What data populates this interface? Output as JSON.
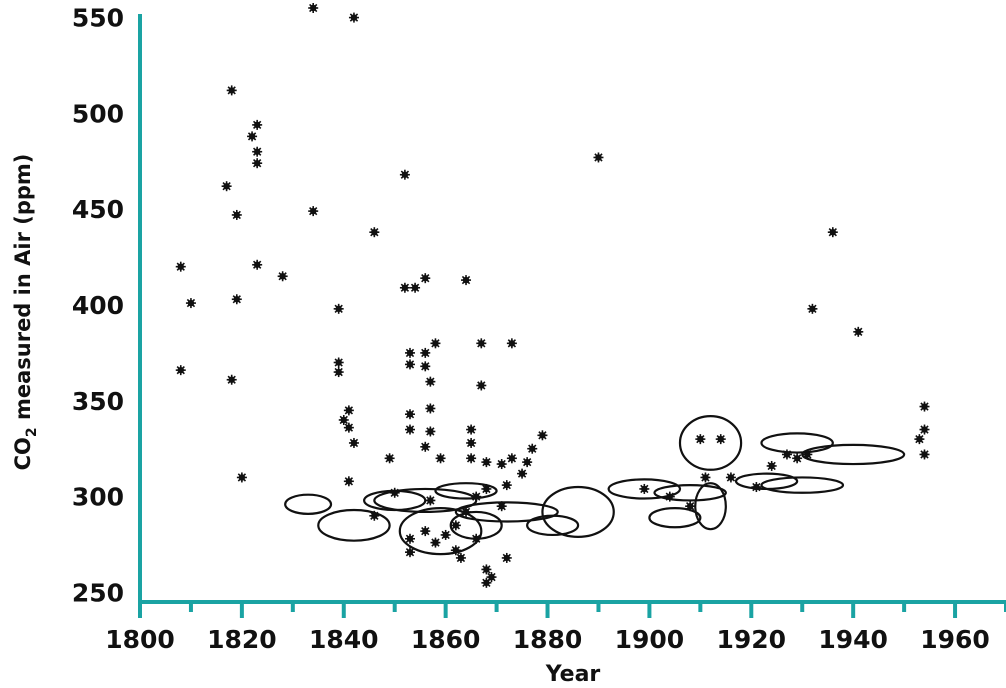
{
  "chart_data": {
    "type": "scatter",
    "xlabel": "Year",
    "ylabel_parts": [
      "CO",
      "2",
      " measured in Air  (ppm)"
    ],
    "xlim": [
      1800,
      1970
    ],
    "ylim": [
      245,
      555
    ],
    "x_ticks": [
      1800,
      1820,
      1840,
      1860,
      1880,
      1900,
      1920,
      1940,
      1960
    ],
    "x_tick_labels": [
      "1800",
      "1820",
      "1840",
      "1860",
      "1880",
      "1900",
      "1920",
      "1940",
      "1960"
    ],
    "y_ticks": [
      250,
      300,
      350,
      400,
      450,
      500,
      550
    ],
    "y_tick_labels": [
      "250",
      "300",
      "350",
      "400",
      "450",
      "500",
      "550"
    ],
    "grid": false,
    "axis_color": "#1aa3a3",
    "point_color": "#111111",
    "points": [
      {
        "x": 1808,
        "y": 420
      },
      {
        "x": 1810,
        "y": 401
      },
      {
        "x": 1808,
        "y": 366
      },
      {
        "x": 1817,
        "y": 462
      },
      {
        "x": 1818,
        "y": 512
      },
      {
        "x": 1819,
        "y": 447
      },
      {
        "x": 1819,
        "y": 403
      },
      {
        "x": 1818,
        "y": 361
      },
      {
        "x": 1820,
        "y": 310
      },
      {
        "x": 1822,
        "y": 488
      },
      {
        "x": 1823,
        "y": 494
      },
      {
        "x": 1823,
        "y": 480
      },
      {
        "x": 1823,
        "y": 474
      },
      {
        "x": 1823,
        "y": 421
      },
      {
        "x": 1828,
        "y": 415
      },
      {
        "x": 1834,
        "y": 555
      },
      {
        "x": 1834,
        "y": 449
      },
      {
        "x": 1842,
        "y": 550
      },
      {
        "x": 1839,
        "y": 398
      },
      {
        "x": 1839,
        "y": 370
      },
      {
        "x": 1839,
        "y": 365
      },
      {
        "x": 1840,
        "y": 340
      },
      {
        "x": 1841,
        "y": 345
      },
      {
        "x": 1841,
        "y": 336
      },
      {
        "x": 1842,
        "y": 328
      },
      {
        "x": 1841,
        "y": 308
      },
      {
        "x": 1846,
        "y": 438
      },
      {
        "x": 1849,
        "y": 320
      },
      {
        "x": 1852,
        "y": 468
      },
      {
        "x": 1852,
        "y": 409
      },
      {
        "x": 1854,
        "y": 409
      },
      {
        "x": 1856,
        "y": 414
      },
      {
        "x": 1853,
        "y": 375
      },
      {
        "x": 1853,
        "y": 369
      },
      {
        "x": 1856,
        "y": 375
      },
      {
        "x": 1856,
        "y": 368
      },
      {
        "x": 1858,
        "y": 380
      },
      {
        "x": 1857,
        "y": 360
      },
      {
        "x": 1853,
        "y": 343
      },
      {
        "x": 1857,
        "y": 346
      },
      {
        "x": 1853,
        "y": 335
      },
      {
        "x": 1857,
        "y": 334
      },
      {
        "x": 1856,
        "y": 326
      },
      {
        "x": 1859,
        "y": 320
      },
      {
        "x": 1864,
        "y": 413
      },
      {
        "x": 1865,
        "y": 335
      },
      {
        "x": 1865,
        "y": 328
      },
      {
        "x": 1865,
        "y": 320
      },
      {
        "x": 1867,
        "y": 380
      },
      {
        "x": 1867,
        "y": 358
      },
      {
        "x": 1873,
        "y": 380
      },
      {
        "x": 1868,
        "y": 318
      },
      {
        "x": 1871,
        "y": 317
      },
      {
        "x": 1873,
        "y": 320
      },
      {
        "x": 1877,
        "y": 325
      },
      {
        "x": 1876,
        "y": 318
      },
      {
        "x": 1879,
        "y": 332
      },
      {
        "x": 1875,
        "y": 312
      },
      {
        "x": 1868,
        "y": 304
      },
      {
        "x": 1872,
        "y": 306
      },
      {
        "x": 1866,
        "y": 300
      },
      {
        "x": 1871,
        "y": 295
      },
      {
        "x": 1864,
        "y": 292
      },
      {
        "x": 1862,
        "y": 285
      },
      {
        "x": 1860,
        "y": 280
      },
      {
        "x": 1858,
        "y": 276
      },
      {
        "x": 1862,
        "y": 272
      },
      {
        "x": 1863,
        "y": 268
      },
      {
        "x": 1853,
        "y": 271
      },
      {
        "x": 1853,
        "y": 278
      },
      {
        "x": 1856,
        "y": 282
      },
      {
        "x": 1866,
        "y": 278
      },
      {
        "x": 1868,
        "y": 262
      },
      {
        "x": 1869,
        "y": 258
      },
      {
        "x": 1872,
        "y": 268
      },
      {
        "x": 1868,
        "y": 255
      },
      {
        "x": 1846,
        "y": 290
      },
      {
        "x": 1850,
        "y": 302
      },
      {
        "x": 1857,
        "y": 298
      },
      {
        "x": 1890,
        "y": 477
      },
      {
        "x": 1899,
        "y": 304
      },
      {
        "x": 1904,
        "y": 300
      },
      {
        "x": 1908,
        "y": 295
      },
      {
        "x": 1911,
        "y": 310
      },
      {
        "x": 1910,
        "y": 330
      },
      {
        "x": 1914,
        "y": 330
      },
      {
        "x": 1916,
        "y": 310
      },
      {
        "x": 1921,
        "y": 305
      },
      {
        "x": 1924,
        "y": 316
      },
      {
        "x": 1927,
        "y": 322
      },
      {
        "x": 1929,
        "y": 320
      },
      {
        "x": 1931,
        "y": 322
      },
      {
        "x": 1932,
        "y": 398
      },
      {
        "x": 1936,
        "y": 438
      },
      {
        "x": 1941,
        "y": 386
      },
      {
        "x": 1954,
        "y": 347
      },
      {
        "x": 1954,
        "y": 335
      },
      {
        "x": 1953,
        "y": 330
      },
      {
        "x": 1954,
        "y": 322
      }
    ],
    "clusters": [
      {
        "cx": 1833,
        "cy": 296,
        "rx": 4.5,
        "ry": 5
      },
      {
        "cx": 1842,
        "cy": 285,
        "rx": 7,
        "ry": 8
      },
      {
        "cx": 1850,
        "cy": 298,
        "rx": 6,
        "ry": 5
      },
      {
        "cx": 1856,
        "cy": 298,
        "rx": 10,
        "ry": 6
      },
      {
        "cx": 1859,
        "cy": 282,
        "rx": 8,
        "ry": 12
      },
      {
        "cx": 1864,
        "cy": 303,
        "rx": 6,
        "ry": 4
      },
      {
        "cx": 1866,
        "cy": 285,
        "rx": 5,
        "ry": 7
      },
      {
        "cx": 1872,
        "cy": 292,
        "rx": 10,
        "ry": 5
      },
      {
        "cx": 1881,
        "cy": 285,
        "rx": 5,
        "ry": 5
      },
      {
        "cx": 1886,
        "cy": 292,
        "rx": 7,
        "ry": 13
      },
      {
        "cx": 1899,
        "cy": 304,
        "rx": 7,
        "ry": 5
      },
      {
        "cx": 1908,
        "cy": 302,
        "rx": 7,
        "ry": 4
      },
      {
        "cx": 1905,
        "cy": 289,
        "rx": 5,
        "ry": 5
      },
      {
        "cx": 1912,
        "cy": 295,
        "rx": 3,
        "ry": 12
      },
      {
        "cx": 1912,
        "cy": 328,
        "rx": 6,
        "ry": 14
      },
      {
        "cx": 1923,
        "cy": 308,
        "rx": 6,
        "ry": 4
      },
      {
        "cx": 1930,
        "cy": 306,
        "rx": 8,
        "ry": 4
      },
      {
        "cx": 1929,
        "cy": 328,
        "rx": 7,
        "ry": 5
      },
      {
        "cx": 1940,
        "cy": 322,
        "rx": 10,
        "ry": 5
      }
    ]
  }
}
